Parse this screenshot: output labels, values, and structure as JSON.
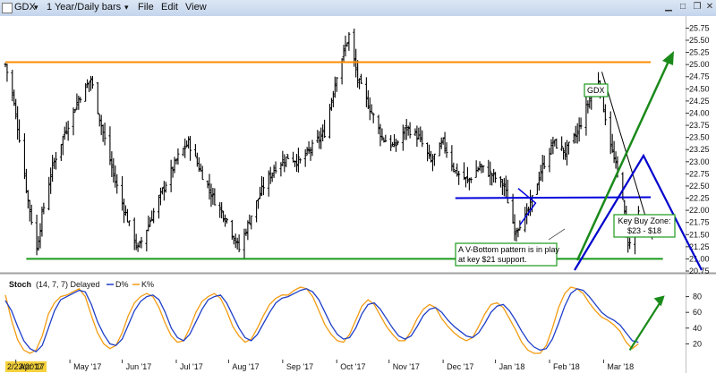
{
  "window": {
    "symbol": "GDX",
    "timeframe": "1 Year/Daily bars",
    "menu": [
      "File",
      "Edit",
      "View"
    ]
  },
  "colors": {
    "price_bars": "#000000",
    "resistance": "#ff8c00",
    "support": "#1a9a1a",
    "neckline": "#0000dd",
    "arrow": "#1a8a1a",
    "projection": "#0000cc",
    "d_line": "#1e3fc8",
    "k_line": "#f39c12",
    "date_bg": "#f5d23c"
  },
  "chart_data": [
    {
      "type": "ohlc",
      "title": "GDX",
      "yticks": [
        20.75,
        21.0,
        21.25,
        21.5,
        21.75,
        22.0,
        22.25,
        22.5,
        22.75,
        23.0,
        23.25,
        23.5,
        23.75,
        24.0,
        24.25,
        24.5,
        24.75,
        25.0,
        25.25,
        25.5,
        25.75
      ],
      "ylim": [
        20.75,
        25.85
      ],
      "xticks": [
        "Apr '17",
        "May '17",
        "Jun '17",
        "Jul '17",
        "Aug '17",
        "Sep '17",
        "Oct '17",
        "Nov '17",
        "Dec '17",
        "Jan '18",
        "Feb '18",
        "Mar '18"
      ],
      "start_date_label": "2/23/2017",
      "close_anchors": [
        [
          "2017-02-23",
          25.0
        ],
        [
          "2017-02-27",
          24.4
        ],
        [
          "2017-03-03",
          23.5
        ],
        [
          "2017-03-08",
          22.2
        ],
        [
          "2017-03-13",
          21.2
        ],
        [
          "2017-03-16",
          21.9
        ],
        [
          "2017-03-22",
          22.9
        ],
        [
          "2017-03-29",
          23.6
        ],
        [
          "2017-04-06",
          24.3
        ],
        [
          "2017-04-13",
          24.7
        ],
        [
          "2017-04-20",
          23.6
        ],
        [
          "2017-04-27",
          22.6
        ],
        [
          "2017-05-05",
          21.7
        ],
        [
          "2017-05-10",
          21.2
        ],
        [
          "2017-05-16",
          21.7
        ],
        [
          "2017-05-24",
          22.4
        ],
        [
          "2017-06-02",
          23.1
        ],
        [
          "2017-06-08",
          23.4
        ],
        [
          "2017-06-15",
          22.8
        ],
        [
          "2017-06-23",
          22.2
        ],
        [
          "2017-06-30",
          21.8
        ],
        [
          "2017-07-07",
          21.2
        ],
        [
          "2017-07-14",
          21.9
        ],
        [
          "2017-07-21",
          22.5
        ],
        [
          "2017-07-28",
          22.9
        ],
        [
          "2017-08-04",
          23.1
        ],
        [
          "2017-08-11",
          23.0
        ],
        [
          "2017-08-18",
          23.3
        ],
        [
          "2017-08-25",
          23.6
        ],
        [
          "2017-09-01",
          24.8
        ],
        [
          "2017-09-08",
          25.6
        ],
        [
          "2017-09-13",
          24.7
        ],
        [
          "2017-09-20",
          24.1
        ],
        [
          "2017-09-27",
          23.5
        ],
        [
          "2017-10-04",
          23.3
        ],
        [
          "2017-10-11",
          23.7
        ],
        [
          "2017-10-18",
          23.5
        ],
        [
          "2017-10-25",
          23.0
        ],
        [
          "2017-11-01",
          23.4
        ],
        [
          "2017-11-08",
          22.8
        ],
        [
          "2017-11-15",
          22.6
        ],
        [
          "2017-11-22",
          22.9
        ],
        [
          "2017-11-30",
          22.7
        ],
        [
          "2017-12-06",
          22.5
        ],
        [
          "2017-12-12",
          21.6
        ],
        [
          "2017-12-19",
          21.9
        ],
        [
          "2017-12-27",
          22.8
        ],
        [
          "2018-01-03",
          23.4
        ],
        [
          "2018-01-10",
          23.2
        ],
        [
          "2018-01-17",
          23.6
        ],
        [
          "2018-01-24",
          24.3
        ],
        [
          "2018-01-29",
          24.7
        ],
        [
          "2018-02-01",
          24.1
        ],
        [
          "2018-02-06",
          23.2
        ],
        [
          "2018-02-12",
          22.3
        ],
        [
          "2018-02-14",
          21.5
        ],
        [
          "2018-02-16",
          21.3
        ],
        [
          "2018-02-21",
          21.9
        ]
      ],
      "lines": [
        {
          "name": "resistance",
          "from": [
            "2017-02-23",
            25.05
          ],
          "to": [
            "2018-02-28",
            25.05
          ]
        },
        {
          "name": "support",
          "from": [
            "2017-03-07",
            21.0
          ],
          "to": [
            "2018-03-07",
            21.0
          ]
        },
        {
          "name": "neckline",
          "from": [
            "2017-11-08",
            22.25
          ],
          "to": [
            "2018-02-28",
            22.27
          ]
        },
        {
          "name": "trendline",
          "from": [
            "2018-01-31",
            24.85
          ],
          "to": [
            "2018-03-01",
            21.4
          ]
        }
      ],
      "annotations": {
        "gdx_box": "GDX",
        "vbottom_text": [
          "A V-Bottom pattern is in play",
          "at key $21 support."
        ],
        "buyzone_text": [
          "Key Buy Zone:",
          "$23 - $18"
        ]
      }
    },
    {
      "type": "line",
      "indicator": "Stoch",
      "params": "(14, 7, 7)",
      "mode": "Delayed",
      "series": [
        {
          "name": "D%",
          "values": [
            75,
            62,
            42,
            24,
            14,
            10,
            18,
            40,
            62,
            76,
            80,
            84,
            88,
            86,
            70,
            48,
            32,
            20,
            18,
            26,
            44,
            62,
            74,
            80,
            82,
            76,
            60,
            40,
            28,
            24,
            32,
            48,
            64,
            76,
            80,
            82,
            72,
            56,
            40,
            28,
            24,
            32,
            46,
            60,
            72,
            78,
            80,
            84,
            88,
            90,
            86,
            76,
            60,
            44,
            32,
            26,
            28,
            40,
            58,
            70,
            72,
            64,
            52,
            40,
            30,
            26,
            30,
            42,
            56,
            64,
            66,
            60,
            50,
            42,
            36,
            30,
            28,
            34,
            46,
            60,
            68,
            70,
            62,
            50,
            36,
            24,
            16,
            12,
            14,
            26,
            46,
            68,
            84,
            90,
            88,
            80,
            70,
            60,
            54,
            50,
            44,
            34,
            24,
            22
          ]
        },
        {
          "name": "K%",
          "values": [
            82,
            50,
            25,
            12,
            8,
            12,
            30,
            58,
            72,
            80,
            82,
            86,
            90,
            80,
            56,
            34,
            20,
            14,
            18,
            34,
            56,
            72,
            80,
            84,
            80,
            66,
            46,
            30,
            22,
            24,
            40,
            60,
            74,
            80,
            84,
            78,
            62,
            42,
            30,
            22,
            26,
            40,
            56,
            70,
            78,
            82,
            82,
            88,
            92,
            90,
            80,
            62,
            44,
            32,
            24,
            22,
            32,
            50,
            68,
            76,
            70,
            56,
            42,
            32,
            24,
            24,
            36,
            52,
            64,
            70,
            66,
            52,
            42,
            34,
            28,
            24,
            28,
            42,
            58,
            70,
            72,
            66,
            52,
            38,
            22,
            12,
            8,
            8,
            18,
            40,
            66,
            84,
            92,
            90,
            84,
            72,
            62,
            54,
            50,
            44,
            36,
            22,
            14,
            20
          ]
        },
        {
          "name": "arrow",
          "from": [
            "2018-02-16",
            12
          ],
          "to": [
            "2018-03-07",
            78
          ]
        }
      ],
      "yticks": [
        20,
        40,
        60,
        80
      ],
      "ylim": [
        0,
        100
      ]
    }
  ]
}
